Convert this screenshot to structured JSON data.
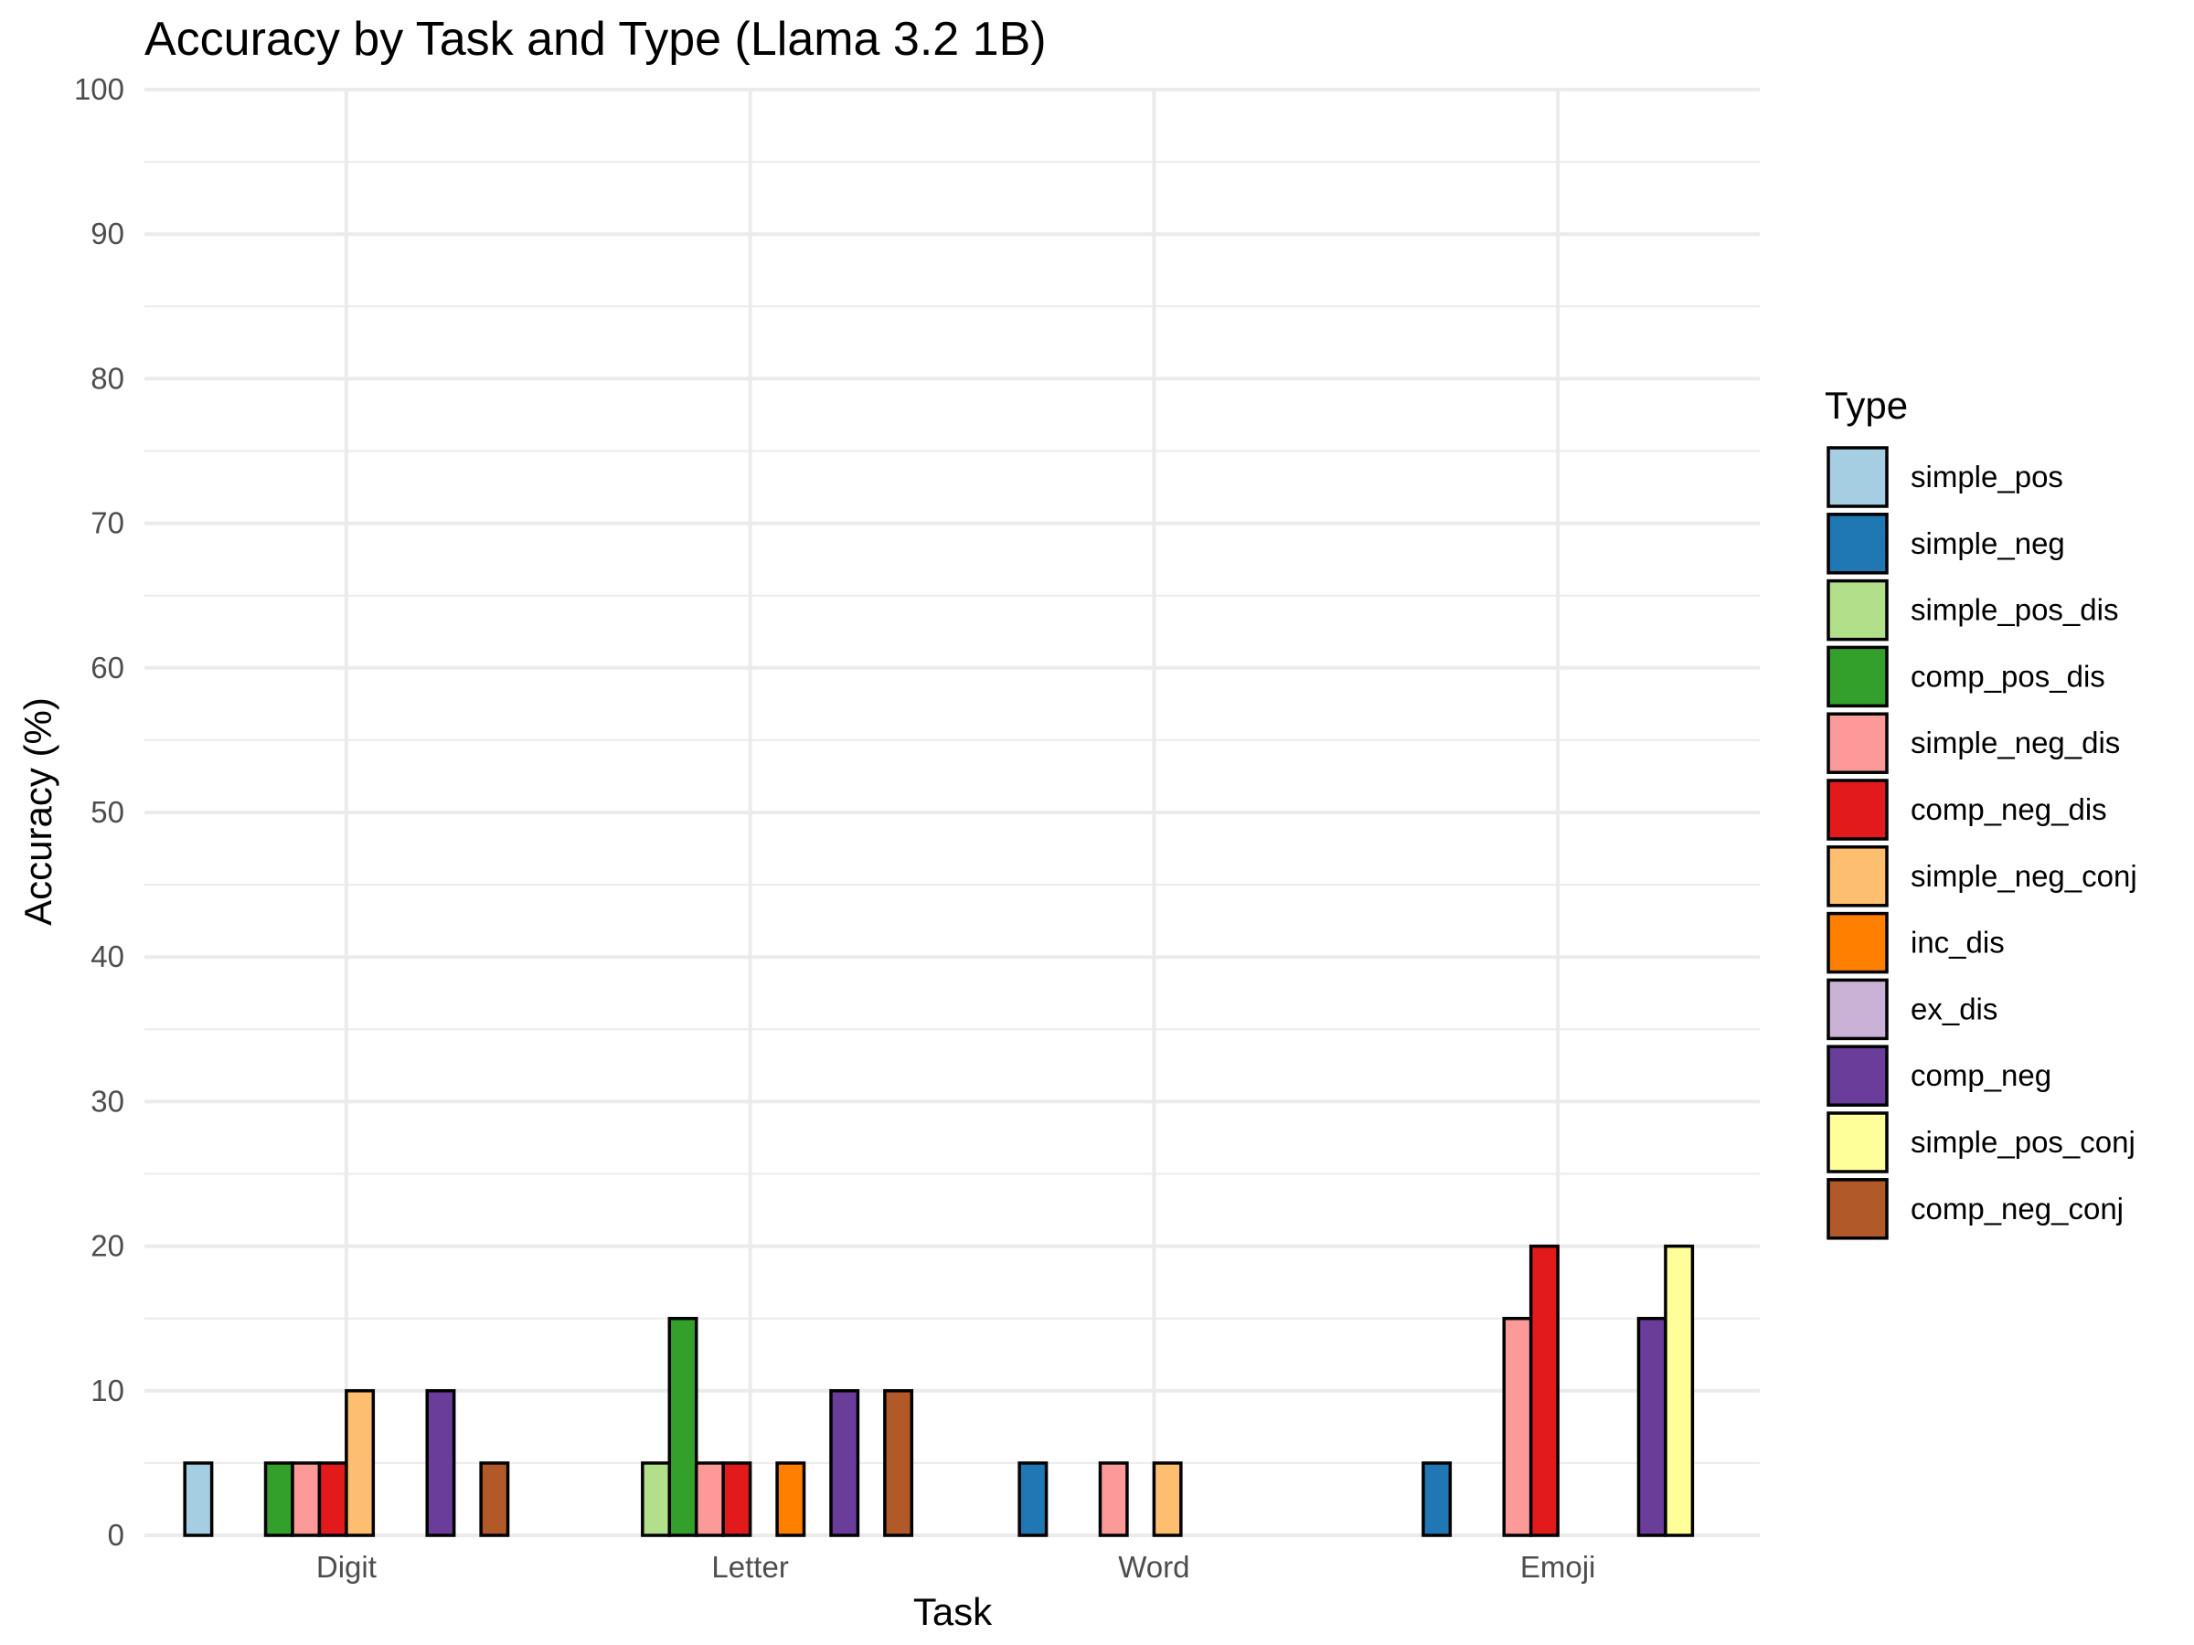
{
  "chart_data": {
    "type": "bar",
    "title": "Accuracy by Task and Type (Llama 3.2 1B)",
    "xlabel": "Task",
    "ylabel": "Accuracy (%)",
    "ylim": [
      0,
      100
    ],
    "yticks": [
      0,
      10,
      20,
      30,
      40,
      50,
      60,
      70,
      80,
      90,
      100
    ],
    "grid": true,
    "legend_title": "Type",
    "legend_position": "right",
    "categories": [
      "Digit",
      "Letter",
      "Word",
      "Emoji"
    ],
    "series": [
      {
        "name": "simple_pos",
        "color": "#A6CEE3",
        "values": [
          5,
          0,
          0,
          0
        ]
      },
      {
        "name": "simple_neg",
        "color": "#1F78B4",
        "values": [
          0,
          0,
          5,
          5
        ]
      },
      {
        "name": "simple_pos_dis",
        "color": "#B2DF8A",
        "values": [
          0,
          5,
          0,
          0
        ]
      },
      {
        "name": "comp_pos_dis",
        "color": "#33A02C",
        "values": [
          5,
          15,
          0,
          0
        ]
      },
      {
        "name": "simple_neg_dis",
        "color": "#FB9A99",
        "values": [
          5,
          5,
          5,
          15
        ]
      },
      {
        "name": "comp_neg_dis",
        "color": "#E31A1C",
        "values": [
          5,
          5,
          0,
          20
        ]
      },
      {
        "name": "simple_neg_conj",
        "color": "#FDBF6F",
        "values": [
          10,
          0,
          5,
          0
        ]
      },
      {
        "name": "inc_dis",
        "color": "#FF7F00",
        "values": [
          0,
          5,
          0,
          0
        ]
      },
      {
        "name": "ex_dis",
        "color": "#CAB2D6",
        "values": [
          0,
          0,
          0,
          0
        ]
      },
      {
        "name": "comp_neg",
        "color": "#6A3D9A",
        "values": [
          10,
          10,
          0,
          15
        ]
      },
      {
        "name": "simple_pos_conj",
        "color": "#FFFF99",
        "values": [
          0,
          0,
          0,
          20
        ]
      },
      {
        "name": "comp_neg_conj",
        "color": "#B15928",
        "values": [
          5,
          10,
          0,
          0
        ]
      }
    ]
  }
}
